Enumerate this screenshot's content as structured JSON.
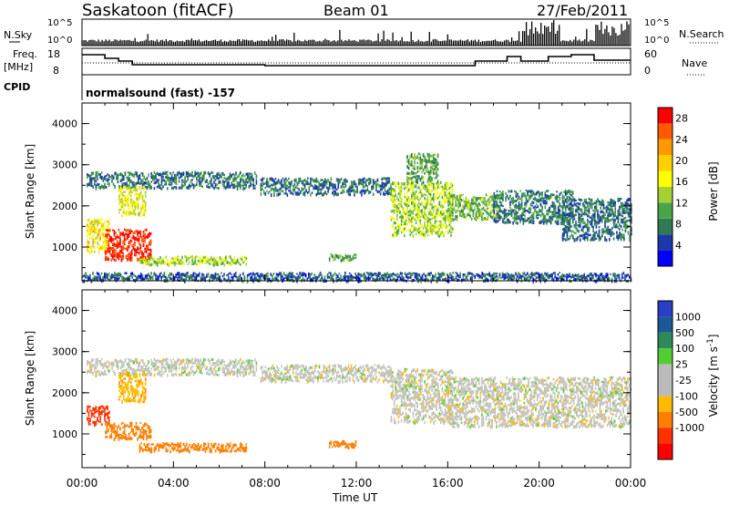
{
  "header": {
    "station": "Saskatoon (fitACF)",
    "beam": "Beam 01",
    "date": "27/Feb/2011"
  },
  "summary_panels": {
    "nsky_label": "N.Sky",
    "nsky_ticks": [
      "10^5",
      "10^0"
    ],
    "nsearch_label": "N.Search",
    "nsearch_ticks": [
      "10^5",
      "10^0"
    ],
    "freq_label": "Freq.",
    "freq_unit": "[MHz]",
    "freq_ticks": [
      "18",
      "8"
    ],
    "nave_label": "Nave",
    "nave_ticks": [
      "60",
      "0"
    ],
    "cpid_label": "CPID",
    "cpid_value": "normalsound (fast) -157"
  },
  "colors": {
    "power": [
      "#0000ff",
      "#1a3aa8",
      "#2e7b54",
      "#4aa54a",
      "#a4d034",
      "#ffff00",
      "#ffd000",
      "#ff9900",
      "#ff5a00",
      "#ff0000"
    ],
    "velocity": [
      "#2a3ec8",
      "#1a5a96",
      "#2e8a5a",
      "#55cc33",
      "#bbbbbb",
      "#bbbbbb",
      "#ffbb00",
      "#ff7f00",
      "#ff3300",
      "#ff0000"
    ],
    "range_gray": "#c4c4bc"
  },
  "chart_data": [
    {
      "type": "heatmap",
      "name": "power",
      "xlabel": "",
      "ylabel": "Slant Range [km]",
      "ylim": [
        180,
        4500
      ],
      "xlim": [
        0,
        24
      ],
      "yticks": [
        1000,
        2000,
        3000,
        4000
      ],
      "colorbar": {
        "label": "Power [dB]",
        "ticks": [
          4,
          8,
          12,
          16,
          20,
          24,
          28
        ],
        "range": [
          0,
          30
        ]
      },
      "features": [
        {
          "t": [
            0.2,
            7.6
          ],
          "r": [
            2450,
            2850
          ],
          "power": 7
        },
        {
          "t": [
            1.6,
            2.8
          ],
          "r": [
            1800,
            2500
          ],
          "power": 16
        },
        {
          "t": [
            0.2,
            1.2
          ],
          "r": [
            900,
            1700
          ],
          "power": 18
        },
        {
          "t": [
            1.0,
            3.0
          ],
          "r": [
            700,
            1450
          ],
          "power": 28
        },
        {
          "t": [
            2.5,
            7.2
          ],
          "r": [
            600,
            800
          ],
          "power": 14
        },
        {
          "t": [
            7.8,
            13.5
          ],
          "r": [
            2300,
            2700
          ],
          "power": 7
        },
        {
          "t": [
            10.8,
            12.0
          ],
          "r": [
            700,
            850
          ],
          "power": 10
        },
        {
          "t": [
            13.5,
            16.2
          ],
          "r": [
            1300,
            2600
          ],
          "power": 14
        },
        {
          "t": [
            14.2,
            15.6
          ],
          "r": [
            2600,
            3300
          ],
          "power": 10
        },
        {
          "t": [
            16.0,
            18.2
          ],
          "r": [
            1700,
            2300
          ],
          "power": 12
        },
        {
          "t": [
            18.0,
            21.5
          ],
          "r": [
            1600,
            2400
          ],
          "power": 8
        },
        {
          "t": [
            21.0,
            24.0
          ],
          "r": [
            1200,
            2200
          ],
          "power": 7
        },
        {
          "t": [
            0.0,
            24.0
          ],
          "r": [
            200,
            400
          ],
          "power": 6
        }
      ]
    },
    {
      "type": "heatmap",
      "name": "velocity",
      "xlabel": "Time UT",
      "ylabel": "Slant Range [km]",
      "ylim": [
        180,
        4500
      ],
      "xlim": [
        0,
        24
      ],
      "yticks": [
        1000,
        2000,
        3000,
        4000
      ],
      "xticks": [
        "00:00",
        "04:00",
        "08:00",
        "12:00",
        "16:00",
        "20:00",
        "00:00"
      ],
      "colorbar": {
        "label": "Velocity [m s^-1]",
        "ticks": [
          "1000",
          "500",
          "100",
          "25",
          "-25",
          "-100",
          "-500",
          "-1000"
        ]
      },
      "features": [
        {
          "t": [
            0.2,
            7.6
          ],
          "r": [
            2450,
            2850
          ],
          "velocity": 0
        },
        {
          "t": [
            1.6,
            2.8
          ],
          "r": [
            1800,
            2500
          ],
          "velocity": -80
        },
        {
          "t": [
            0.2,
            1.2
          ],
          "r": [
            1250,
            1700
          ],
          "velocity": -700
        },
        {
          "t": [
            1.0,
            3.0
          ],
          "r": [
            900,
            1300
          ],
          "velocity": -300
        },
        {
          "t": [
            2.5,
            7.2
          ],
          "r": [
            600,
            800
          ],
          "velocity": -150
        },
        {
          "t": [
            7.8,
            13.5
          ],
          "r": [
            2300,
            2700
          ],
          "velocity": 0
        },
        {
          "t": [
            10.8,
            12.0
          ],
          "r": [
            700,
            850
          ],
          "velocity": -150
        },
        {
          "t": [
            13.5,
            16.2
          ],
          "r": [
            1300,
            2600
          ],
          "velocity": 0
        },
        {
          "t": [
            16.0,
            24.0
          ],
          "r": [
            1200,
            2400
          ],
          "velocity": 0
        }
      ]
    }
  ]
}
